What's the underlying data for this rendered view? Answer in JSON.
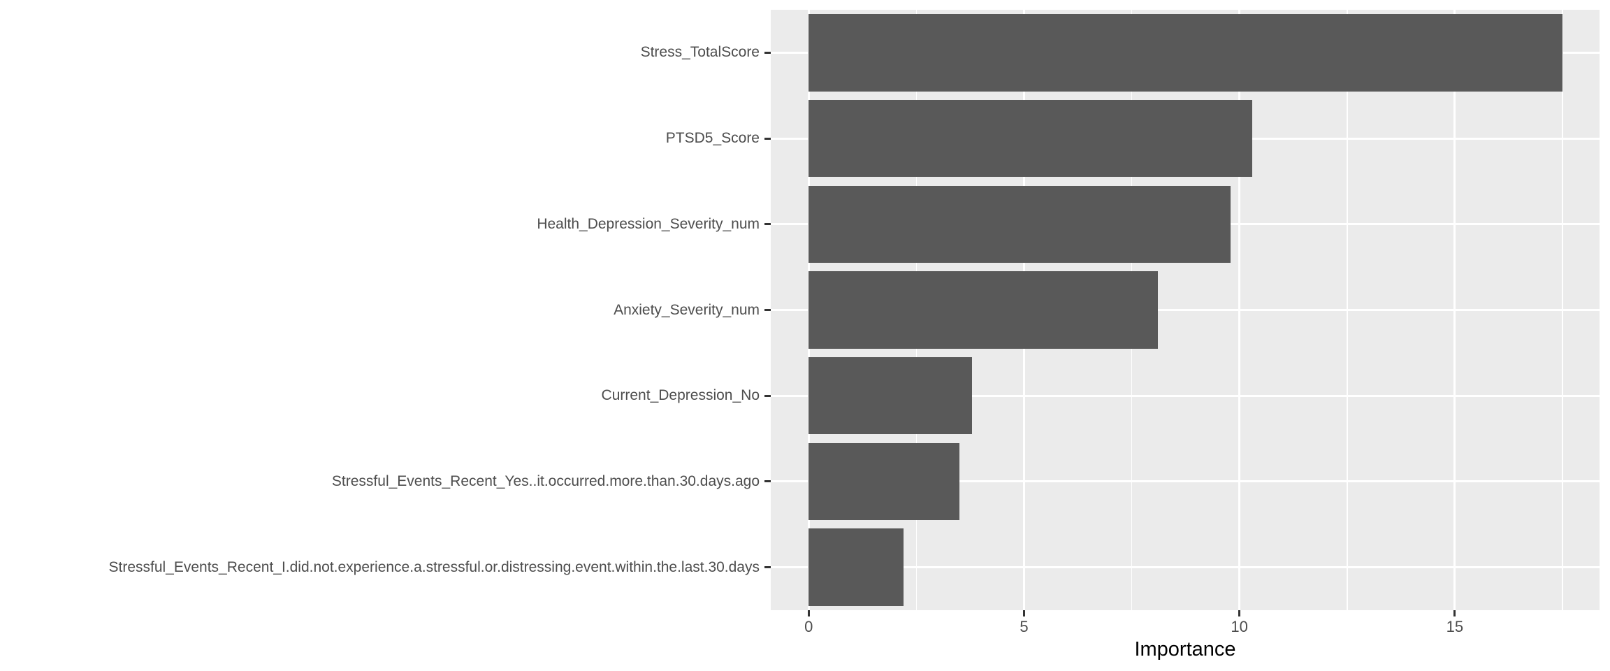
{
  "chart_data": {
    "type": "bar",
    "orientation": "horizontal",
    "title": "",
    "xlabel": "Importance",
    "ylabel": "",
    "categories": [
      "Stress_TotalScore",
      "PTSD5_Score",
      "Health_Depression_Severity_num",
      "Anxiety_Severity_num",
      "Current_Depression_No",
      "Stressful_Events_Recent_Yes..it.occurred.more.than.30.days.ago",
      "Stressful_Events_Recent_I.did.not.experience.a.stressful.or.distressing.event.within.the.last.30.days"
    ],
    "values": [
      17.5,
      10.3,
      9.8,
      8.1,
      3.8,
      3.5,
      2.2
    ],
    "xlim": [
      -0.88,
      18.36
    ],
    "x_ticks": [
      0,
      5,
      10,
      15
    ],
    "x_minor_ticks": [
      2.5,
      7.5,
      12.5,
      17.5
    ],
    "grid": "on",
    "legend_position": "none",
    "bar_fill_color": "#595959",
    "panel_background_color": "#EBEBEB",
    "gridline_color": "#FFFFFF",
    "axis_text_color": "#4D4D4D",
    "axis_tick_color": "#333333",
    "axis_title_color": "#000000",
    "bar_width_fraction": 0.9
  }
}
